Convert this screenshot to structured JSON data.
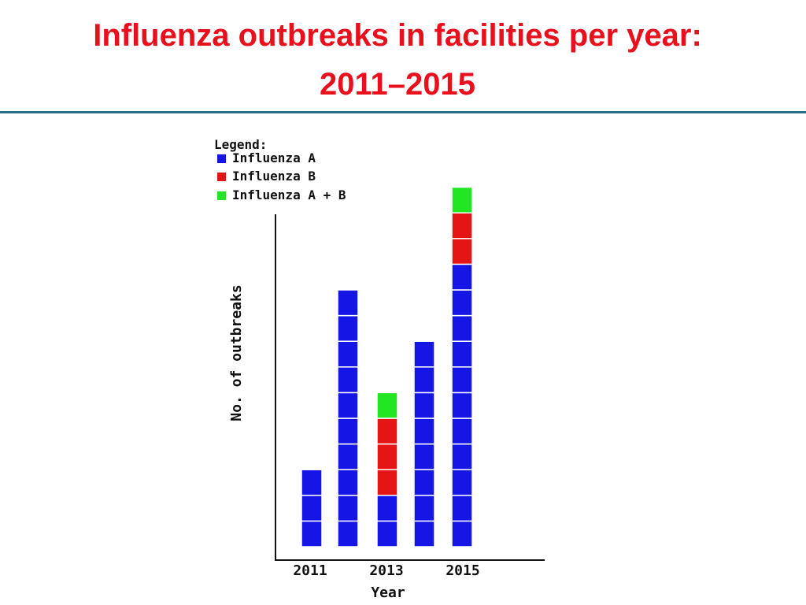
{
  "slide": {
    "title_line1": "Influenza outbreaks in facilities per year:",
    "title_line2": "2011–2015"
  },
  "chart_data": {
    "type": "bar",
    "stacked": true,
    "categories": [
      "2011",
      "2012",
      "2013",
      "2014",
      "2015"
    ],
    "tick_labels": [
      "2011",
      "2013",
      "2015"
    ],
    "series": [
      {
        "name": "Influenza A",
        "values": [
          3,
          10,
          2,
          8,
          11
        ],
        "color": "#1515e6"
      },
      {
        "name": "Influenza B",
        "values": [
          0,
          0,
          3,
          0,
          2
        ],
        "color": "#e61515"
      },
      {
        "name": "Influenza A + B",
        "values": [
          0,
          0,
          1,
          0,
          1
        ],
        "color": "#22e622"
      }
    ],
    "legend_title": "Legend:",
    "legend_placement": "top-left",
    "xlabel": "Year",
    "ylabel": "No. of outbreaks",
    "ylim": [
      0,
      14
    ],
    "grid": false
  }
}
